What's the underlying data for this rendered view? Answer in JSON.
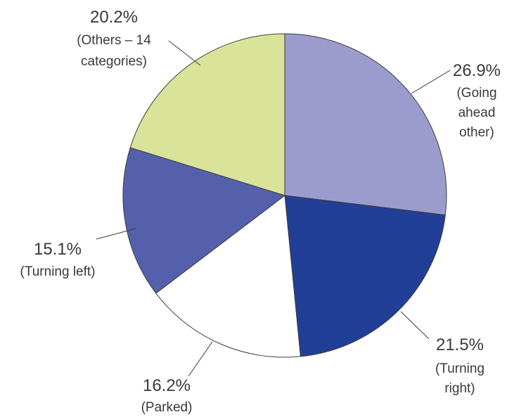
{
  "chart_data": {
    "type": "pie",
    "title": "",
    "start_angle_deg": 0,
    "direction": "clockwise",
    "slices": [
      {
        "label": "(Going ahead other)",
        "label_lines": [
          "(Going",
          "ahead",
          "other)"
        ],
        "value": 26.9,
        "value_label": "26.9%",
        "color": "#9b9ccd"
      },
      {
        "label": "(Turning right)",
        "label_lines": [
          "(Turning",
          "right)"
        ],
        "value": 21.5,
        "value_label": "21.5%",
        "color": "#213f96"
      },
      {
        "label": "(Parked)",
        "label_lines": [
          "(Parked)"
        ],
        "value": 16.2,
        "value_label": "16.2%",
        "color": "#ffffff"
      },
      {
        "label": "(Turning left)",
        "label_lines": [
          "(Turning left)"
        ],
        "value": 15.1,
        "value_label": "15.1%",
        "color": "#5560ad"
      },
      {
        "label": "(Others – 14 categories)",
        "label_lines": [
          "(Others – 14",
          "categories)"
        ],
        "value": 20.2,
        "value_label": "20.2%",
        "color": "#d9e39a"
      }
    ]
  }
}
